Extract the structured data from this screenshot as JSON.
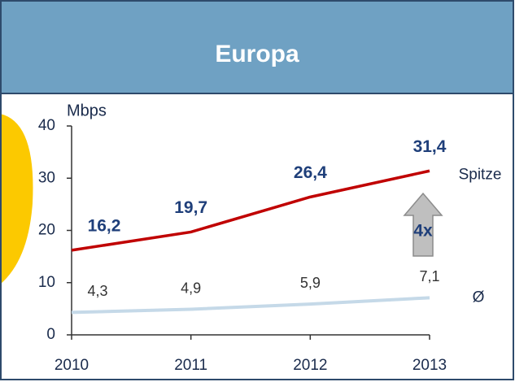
{
  "chart_data": {
    "type": "line",
    "title": "Europa",
    "y_label": "Mbps",
    "annotation": "4x",
    "x": [
      2010,
      2011,
      2012,
      2013
    ],
    "xlim": [
      2010,
      2013
    ],
    "xticks": [
      2010,
      2011,
      2012,
      2013
    ],
    "ylim": [
      0,
      40
    ],
    "yticks": [
      0,
      10,
      20,
      30,
      40
    ],
    "series": [
      {
        "name": "Spitze",
        "color": "#c00000",
        "values": [
          16.2,
          19.7,
          26.4,
          31.4
        ],
        "value_labels": [
          "16,2",
          "19,7",
          "26,4",
          "31,4"
        ]
      },
      {
        "name": "Ø",
        "color": "#c5d9e8",
        "values": [
          4.3,
          4.9,
          5.9,
          7.1
        ],
        "value_labels": [
          "4,3",
          "4,9",
          "5,9",
          "7,1"
        ]
      }
    ]
  }
}
